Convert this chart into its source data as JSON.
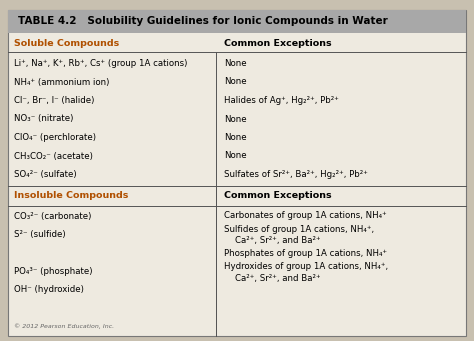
{
  "title": "TABLE 4.2   Solubility Guidelines for Ionic Compounds in Water",
  "header_bg": "#a8a8a8",
  "table_bg": "#eeeae0",
  "outer_bg": "#c8c0b0",
  "col1_header": "Soluble Compounds",
  "col2_header": "Common Exceptions",
  "col1_header_color": "#b05000",
  "soluble_rows": [
    [
      "Li⁺, Na⁺, K⁺, Rb⁺, Cs⁺ (group 1A cations)",
      "None"
    ],
    [
      "NH₄⁺ (ammonium ion)",
      "None"
    ],
    [
      "Cl⁻, Br⁻, I⁻ (halide)",
      "Halides of Ag⁺, Hg₂²⁺, Pb²⁺"
    ],
    [
      "NO₃⁻ (nitrate)",
      "None"
    ],
    [
      "ClO₄⁻ (perchlorate)",
      "None"
    ],
    [
      "CH₃CO₂⁻ (acetate)",
      "None"
    ],
    [
      "SO₄²⁻ (sulfate)",
      "Sulfates of Sr²⁺, Ba²⁺, Hg₂²⁺, Pb²⁺"
    ]
  ],
  "insoluble_header_col1": "Insoluble Compounds",
  "insoluble_header_col2": "Common Exceptions",
  "insoluble_header_color": "#b05000",
  "insoluble_left": [
    "CO₃²⁻ (carbonate)",
    "S²⁻ (sulfide)",
    "",
    "PO₄³⁻ (phosphate)",
    "OH⁻ (hydroxide)"
  ],
  "insoluble_right": [
    [
      "Carbonates of group 1A cations, NH₄⁺"
    ],
    [
      "Sulfides of group 1A cations, NH₄⁺,",
      "    Ca²⁺, Sr²⁺, and Ba²⁺"
    ],
    [
      "Phosphates of group 1A cations, NH₄⁺"
    ],
    [
      "Hydroxides of group 1A cations, NH₄⁺,",
      "    Ca²⁺, Sr²⁺, and Ba²⁺"
    ]
  ],
  "footer": "© 2012 Pearson Education, Inc.",
  "font_size_title": 7.5,
  "font_size_body": 6.2,
  "font_size_header": 6.8,
  "font_size_footer": 4.5,
  "col_div": 0.455
}
